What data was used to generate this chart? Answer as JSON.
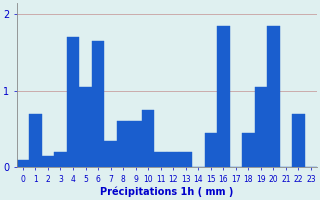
{
  "values": [
    0.1,
    0.7,
    0.15,
    0.2,
    1.7,
    1.05,
    1.65,
    0.35,
    0.6,
    0.6,
    0.75,
    0.2,
    0.2,
    0.2,
    0.0,
    0.45,
    1.85,
    0.0,
    0.45,
    1.05,
    1.85,
    0.0,
    0.7,
    0.0
  ],
  "xlabel": "Précipitations 1h ( mm )",
  "ylim": [
    0,
    2.15
  ],
  "yticks": [
    0,
    1,
    2
  ],
  "bar_color": "#1a5ece",
  "bg_color": "#dff0f0",
  "grid_color": "#c8a0a0",
  "text_color": "#0000cc",
  "tick_label_size": 5.5,
  "xlabel_size": 7.0
}
